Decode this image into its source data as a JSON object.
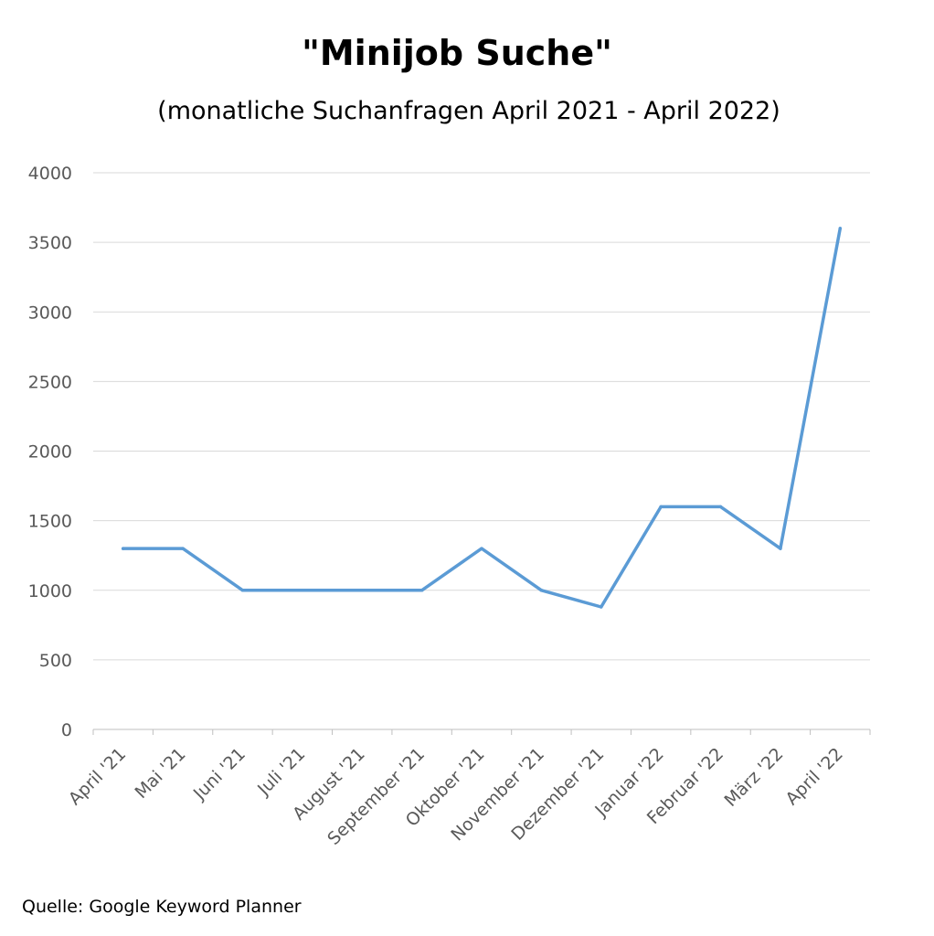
{
  "chart_data": {
    "type": "line",
    "title": "\"Minijob Suche\"",
    "subtitle": "(monatliche Suchanfragen April 2021 - April 2022)",
    "source": "Quelle: Google Keyword Planner",
    "categories": [
      "April '21",
      "Mai '21",
      "Juni '21",
      "Juli '21",
      "August '21",
      "September '21",
      "Oktober '21",
      "November '21",
      "Dezember '21",
      "Januar '22",
      "Februar '22",
      "März '22",
      "April '22"
    ],
    "series": [
      {
        "values": [
          1300,
          1300,
          1000,
          1000,
          1000,
          1000,
          1300,
          1000,
          880,
          1600,
          1600,
          1300,
          3600
        ]
      }
    ],
    "ylim": [
      0,
      4000
    ],
    "yticks": [
      0,
      500,
      1000,
      1500,
      2000,
      2500,
      3000,
      3500,
      4000
    ],
    "xlabel": "",
    "ylabel": "",
    "grid": true,
    "legend": "none",
    "colors": {
      "line": "#5b9bd5",
      "grid": "#d9d9d9",
      "axis": "#bfbfbf",
      "tick_text": "#595959"
    }
  }
}
